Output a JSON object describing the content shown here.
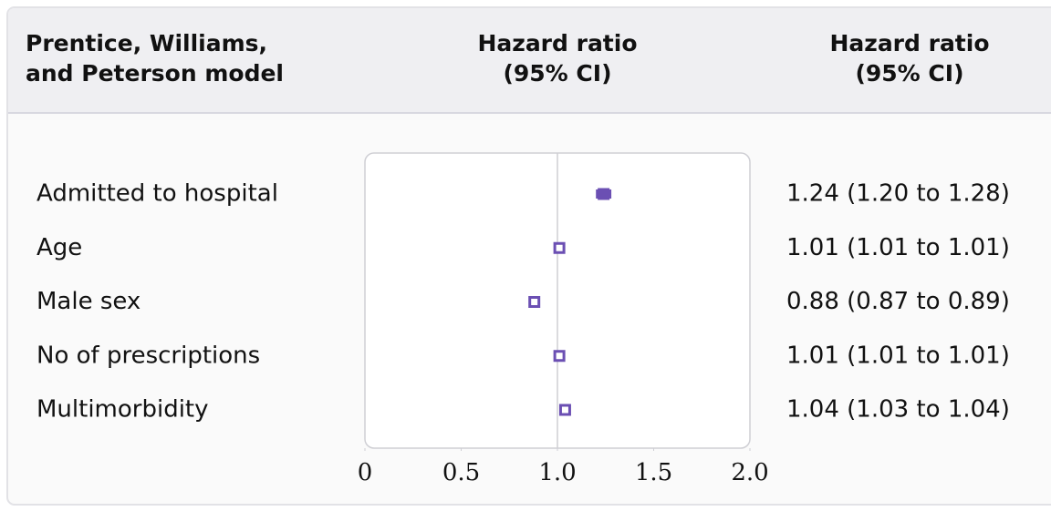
{
  "chart_data": {
    "type": "forest",
    "headers": [
      [
        "Prentice, Williams,",
        "and Peterson model"
      ],
      [
        "Hazard ratio",
        "(95% CI)"
      ],
      [
        "Hazard ratio",
        "(95% CI)"
      ]
    ],
    "categories": [
      "Admitted to hospital",
      "Age",
      "Male sex",
      "No of prescriptions",
      "Multimorbidity"
    ],
    "values": [
      1.24,
      1.01,
      0.88,
      1.01,
      1.04
    ],
    "lower": [
      1.2,
      1.01,
      0.87,
      1.01,
      1.03
    ],
    "upper": [
      1.28,
      1.01,
      0.89,
      1.01,
      1.04
    ],
    "value_labels": [
      "1.24 (1.20 to 1.28)",
      "1.01 (1.01 to 1.01)",
      "0.88 (0.87 to 0.89)",
      "1.01 (1.01 to 1.01)",
      "1.04 (1.03 to 1.04)"
    ],
    "xlim": [
      0,
      2
    ],
    "xticks": [
      0,
      0.5,
      {
        "value": 1,
        "label": "1.0"
      },
      1.5,
      {
        "value": 2,
        "label": "2.0"
      }
    ],
    "reference_line": 1,
    "color": "#6b4fb3"
  }
}
